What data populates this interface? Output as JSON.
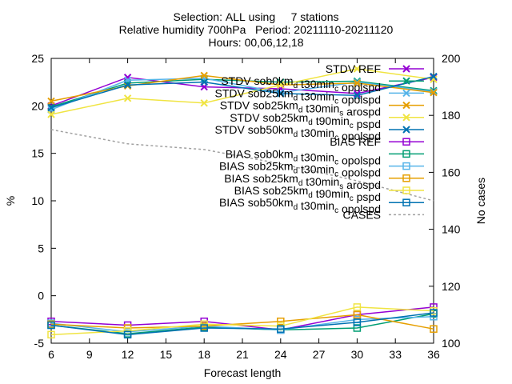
{
  "chart_data": {
    "type": "line",
    "title_lines": [
      "Selection: ALL using     7 stations",
      "Relative humidity 700hPa   Period: 20211110-20211120",
      "Hours: 00,06,12,18"
    ],
    "xlabel": "Forecast length",
    "ylabel": "%",
    "y2label": "No cases",
    "xlim": [
      6,
      36
    ],
    "ylim": [
      -5,
      25
    ],
    "y2lim": [
      100,
      200
    ],
    "xticks": [
      6,
      9,
      12,
      15,
      18,
      21,
      24,
      27,
      30,
      33,
      36
    ],
    "yticks": [
      -5,
      0,
      5,
      10,
      15,
      20,
      25
    ],
    "y2ticks": [
      100,
      120,
      140,
      160,
      180,
      200
    ],
    "legend_position": "top-right",
    "grid": false,
    "series": [
      {
        "name": "STDV REF",
        "color": "#9400d3",
        "marker": "x",
        "dash": "",
        "axis": "y",
        "x": [
          6,
          12,
          18,
          24,
          30,
          36
        ],
        "y": [
          20.0,
          23.0,
          22.0,
          21.8,
          21.3,
          23.0
        ]
      },
      {
        "name": "STDV sob0km_d t30min_c opolspd",
        "color": "#009e73",
        "marker": "x",
        "dash": "",
        "axis": "y",
        "x": [
          6,
          12,
          18,
          24,
          30,
          36
        ],
        "y": [
          19.9,
          22.4,
          22.8,
          22.5,
          22.6,
          21.6
        ]
      },
      {
        "name": "STDV sob25km_d t30min_c opolspd",
        "color": "#56b4e9",
        "marker": "x",
        "dash": "",
        "axis": "y",
        "x": [
          6,
          12,
          18,
          24,
          30,
          36
        ],
        "y": [
          19.6,
          22.7,
          22.9,
          21.4,
          22.5,
          21.5
        ]
      },
      {
        "name": "STDV sob25km_d t30min_s arospd",
        "color": "#e69f00",
        "marker": "x",
        "dash": "",
        "axis": "y",
        "x": [
          6,
          12,
          18,
          24,
          30,
          36
        ],
        "y": [
          20.5,
          22.1,
          23.2,
          22.2,
          22.4,
          21.4
        ]
      },
      {
        "name": "STDV sob25km_d t90min_c pspd",
        "color": "#f0e442",
        "marker": "x",
        "dash": "",
        "axis": "y",
        "x": [
          6,
          12,
          18,
          24,
          30,
          36
        ],
        "y": [
          19.1,
          20.8,
          20.3,
          22.2,
          23.9,
          22.8
        ]
      },
      {
        "name": "STDV sob50km_d t30min_c opolspd",
        "color": "#0072b2",
        "marker": "x",
        "dash": "",
        "axis": "y",
        "x": [
          6,
          12,
          18,
          24,
          30,
          36
        ],
        "y": [
          19.8,
          22.2,
          22.5,
          21.3,
          21.1,
          23.1
        ]
      },
      {
        "name": "BIAS REF",
        "color": "#9400d3",
        "marker": "s",
        "dash": "",
        "axis": "y",
        "x": [
          6,
          12,
          18,
          24,
          30,
          36
        ],
        "y": [
          -2.7,
          -3.1,
          -2.7,
          -3.6,
          -2.0,
          -1.2
        ]
      },
      {
        "name": "BIAS sob0km_d t30min_c opolspd",
        "color": "#009e73",
        "marker": "s",
        "dash": "",
        "axis": "y",
        "x": [
          6,
          12,
          18,
          24,
          30,
          36
        ],
        "y": [
          -3.1,
          -4.0,
          -3.3,
          -3.6,
          -3.4,
          -1.9
        ]
      },
      {
        "name": "BIAS sob25km_d t30min_c opolspd",
        "color": "#56b4e9",
        "marker": "s",
        "dash": "",
        "axis": "y",
        "x": [
          6,
          12,
          18,
          24,
          30,
          36
        ],
        "y": [
          -2.9,
          -3.8,
          -3.2,
          -3.6,
          -2.5,
          -2.2
        ]
      },
      {
        "name": "BIAS sob25km_d t30min_s arospd",
        "color": "#e69f00",
        "marker": "s",
        "dash": "",
        "axis": "y",
        "x": [
          6,
          12,
          18,
          24,
          30,
          36
        ],
        "y": [
          -3.0,
          -3.4,
          -3.2,
          -2.7,
          -2.0,
          -3.5
        ]
      },
      {
        "name": "BIAS sob25km_d t90min_c pspd",
        "color": "#f0e442",
        "marker": "s",
        "dash": "",
        "axis": "y",
        "x": [
          6,
          12,
          18,
          24,
          30,
          36
        ],
        "y": [
          -4.1,
          -3.7,
          -3.0,
          -3.2,
          -1.2,
          -1.6
        ]
      },
      {
        "name": "BIAS sob50km_d t30min_c opolspd",
        "color": "#0072b2",
        "marker": "s",
        "dash": "",
        "axis": "y",
        "x": [
          6,
          12,
          18,
          24,
          30,
          36
        ],
        "y": [
          -3.1,
          -4.1,
          -3.4,
          -3.5,
          -2.8,
          -1.8
        ]
      },
      {
        "name": "CASES",
        "color": "#a0a0a0",
        "marker": "",
        "dash": "3,3",
        "axis": "y2",
        "x": [
          6,
          12,
          18,
          24,
          30,
          36
        ],
        "y": [
          175,
          170,
          168,
          163,
          157,
          150
        ]
      }
    ]
  }
}
